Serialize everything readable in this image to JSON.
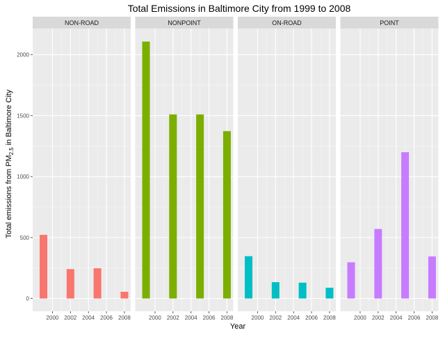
{
  "chart_data": {
    "type": "bar",
    "title": "Total Emissions in Baltimore City from 1999 to 2008",
    "xlabel": "Year",
    "ylabel": {
      "prefix": "Total emissions from PM",
      "subscript": "2.5",
      "suffix": " in Baltimore City"
    },
    "x_ticks": [
      2000,
      2002,
      2004,
      2006,
      2008
    ],
    "y_ticks": [
      0,
      500,
      1000,
      1500,
      2000
    ],
    "xlim": [
      1997.8,
      2008.7
    ],
    "ylim": [
      -105,
      2215
    ],
    "grid": true,
    "legend": "none",
    "x": [
      1999,
      2002,
      2005,
      2008
    ],
    "facets": [
      {
        "name": "NON-ROAD",
        "color": "#F8766D",
        "values": [
          522,
          241,
          248,
          55
        ]
      },
      {
        "name": "NONPOINT",
        "color": "#7CAE00",
        "values": [
          2108,
          1510,
          1510,
          1373
        ]
      },
      {
        "name": "ON-ROAD",
        "color": "#00BFC4",
        "values": [
          347,
          134,
          130,
          88
        ]
      },
      {
        "name": "POINT",
        "color": "#C77CFF",
        "values": [
          297,
          570,
          1200,
          345
        ]
      }
    ]
  }
}
